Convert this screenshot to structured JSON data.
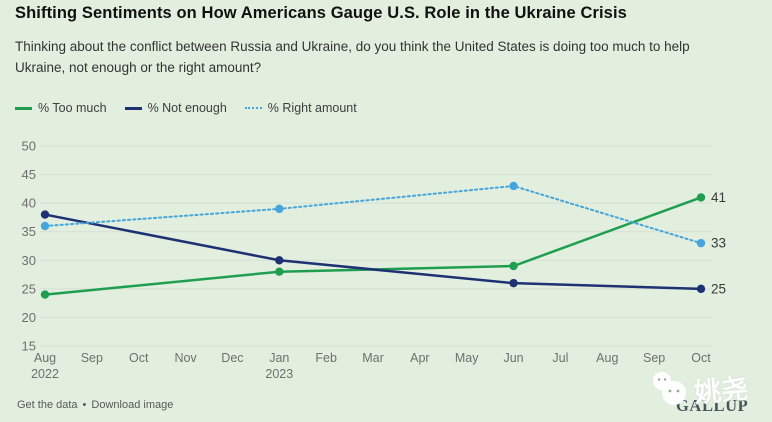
{
  "header": {
    "title": "Shifting Sentiments on How Americans Gauge U.S. Role in the Ukraine Crisis",
    "subtitle": "Thinking about the conflict between Russia and Ukraine, do you think the United States is doing too much to help Ukraine, not enough or the right amount?"
  },
  "legend": {
    "items": [
      {
        "label": "% Too much",
        "color": "#1f9e50",
        "style": "solid"
      },
      {
        "label": "% Not enough",
        "color": "#1d3173",
        "style": "solid"
      },
      {
        "label": "% Right amount",
        "color": "#46a5da",
        "style": "dotted"
      }
    ]
  },
  "chart_data": {
    "type": "line",
    "title": "Shifting Sentiments on How Americans Gauge U.S. Role in the Ukraine Crisis",
    "categories": [
      "Aug",
      "Sep",
      "Oct",
      "Nov",
      "Dec",
      "Jan",
      "Feb",
      "Mar",
      "Apr",
      "May",
      "Jun",
      "Jul",
      "Aug",
      "Sep",
      "Oct"
    ],
    "category_sublabels": {
      "0": "2022",
      "5": "2023"
    },
    "y_ticks": [
      50,
      45,
      40,
      35,
      30,
      25,
      20,
      15
    ],
    "ylim": [
      15,
      50
    ],
    "grid": "horizontal",
    "legend_position": "top-left",
    "series": [
      {
        "name": "% Too much",
        "color": "#1f9e50",
        "line_style": "solid",
        "x_index": [
          0,
          5,
          10,
          14
        ],
        "values": [
          24,
          28,
          29,
          41
        ],
        "end_label": "41"
      },
      {
        "name": "% Not enough",
        "color": "#1d3173",
        "line_style": "solid",
        "x_index": [
          0,
          5,
          10,
          14
        ],
        "values": [
          38,
          30,
          26,
          25
        ],
        "end_label": "25"
      },
      {
        "name": "% Right amount",
        "color": "#46a5da",
        "line_style": "dotted",
        "x_index": [
          0,
          5,
          10,
          14
        ],
        "values": [
          36,
          39,
          43,
          33
        ],
        "end_label": "33"
      }
    ]
  },
  "footer": {
    "link1": "Get the data",
    "separator": "•",
    "link2": "Download image"
  },
  "branding": {
    "logo": "GALLUP",
    "watermark_text": "姚尧"
  },
  "colors": {
    "background": "#e2efdf",
    "grid": "#d5dfd2",
    "axis_label": "#6f6f6f",
    "end_label": "#3a3a3a"
  }
}
